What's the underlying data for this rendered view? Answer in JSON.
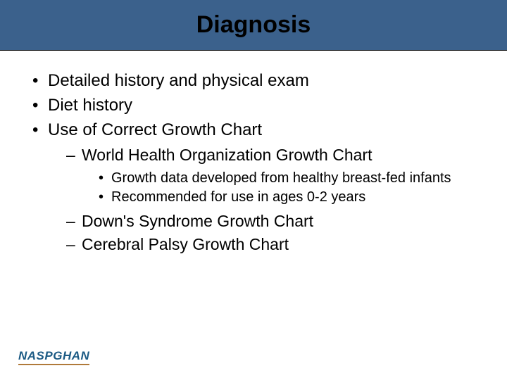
{
  "title": "Diagnosis",
  "bullets": {
    "level1": [
      "Detailed history and physical exam",
      "Diet history",
      "Use of Correct Growth Chart"
    ],
    "level2_a": [
      "World Health Organization Growth Chart"
    ],
    "level3": [
      "Growth data developed from healthy breast-fed infants",
      "Recommended for use in ages 0-2 years"
    ],
    "level2_b": [
      "Down's Syndrome Growth Chart",
      "Cerebral Palsy Growth Chart"
    ]
  },
  "logo": {
    "name": "NASPGHAN"
  },
  "styles": {
    "title_bg": "#3b618c",
    "title_color": "#000000",
    "title_fontsize": 34,
    "body_fontsize_l1": 24,
    "body_fontsize_l2": 23,
    "body_fontsize_l3": 20,
    "logo_color": "#1b5a84",
    "logo_underline": "#b07a3a",
    "background": "#ffffff"
  }
}
